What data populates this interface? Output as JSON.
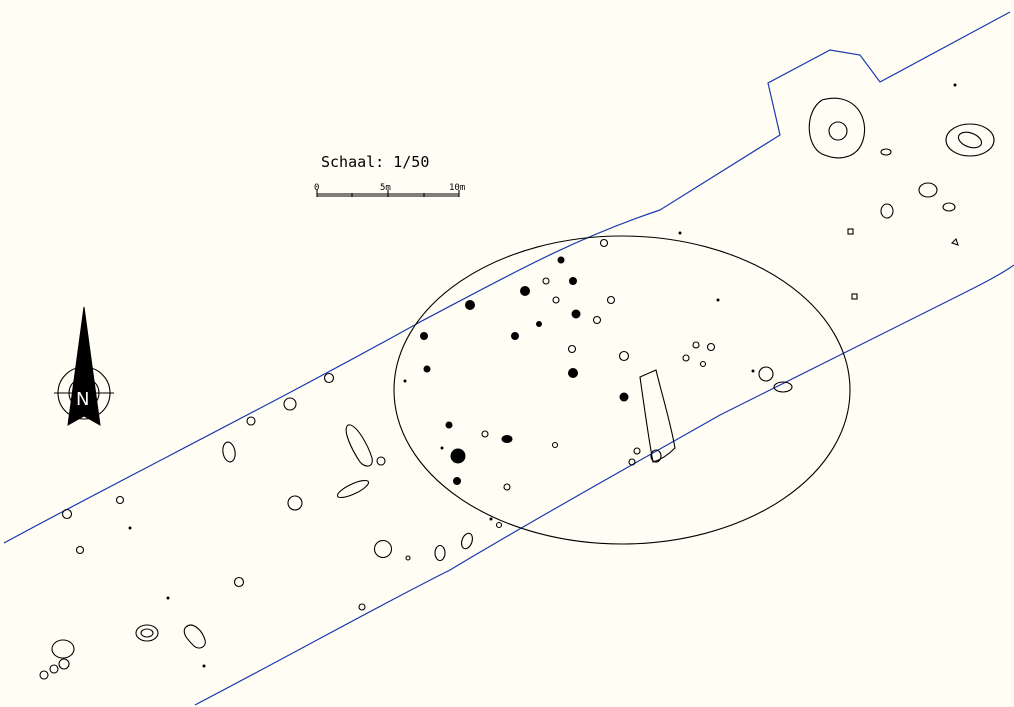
{
  "scale": {
    "title": "Schaal: 1/50",
    "ticks": [
      "0",
      "5m",
      "10m"
    ]
  },
  "north_arrow": {
    "label": "N"
  },
  "colors": {
    "background": "#fffdf4",
    "trench_outline": "#1a3ab0",
    "features": "#000000"
  }
}
